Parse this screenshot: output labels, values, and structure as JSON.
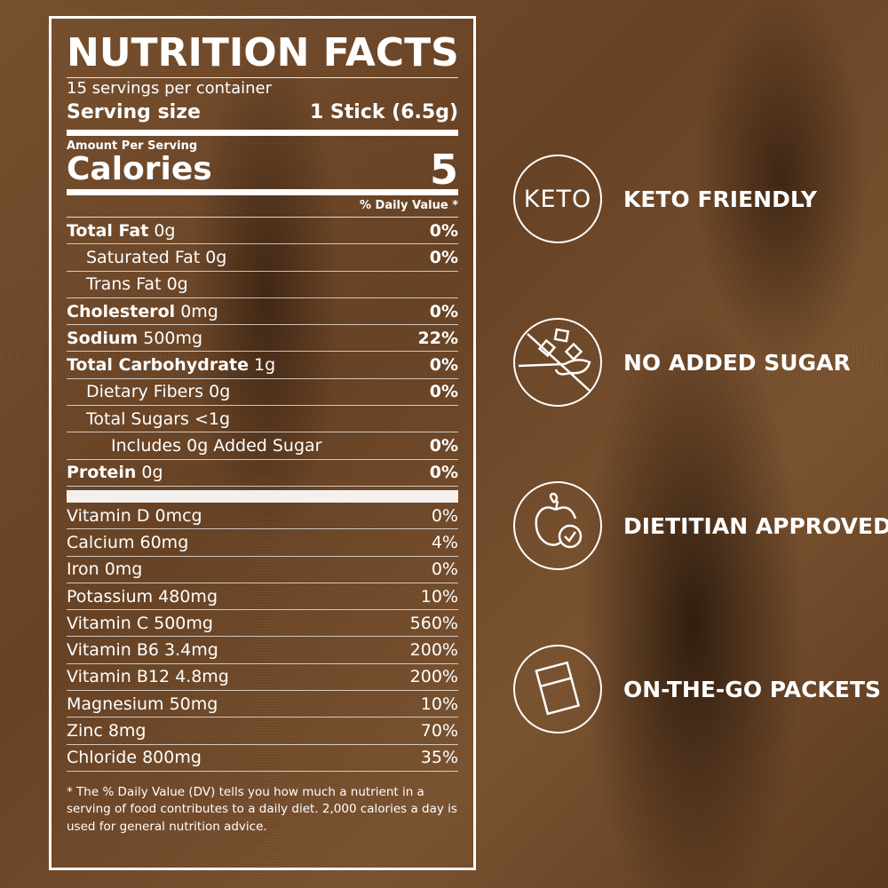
{
  "label": {
    "title": "NUTRITION FACTS",
    "servings": "15 servings per container",
    "serving_size_label": "Serving size",
    "serving_size_value": "1 Stick (6.5g)",
    "amount_per_serving": "Amount Per Serving",
    "calories_label": "Calories",
    "calories_value": "5",
    "dv_header": "% Daily Value *",
    "nutrients": [
      {
        "name": "Total Fat",
        "amount": "0g",
        "dv": "0%"
      },
      {
        "name": "Saturated Fat 0g",
        "amount": "",
        "dv": "0%"
      },
      {
        "name": "Trans Fat 0g",
        "amount": "",
        "dv": ""
      },
      {
        "name": "Cholesterol",
        "amount": "0mg",
        "dv": "0%"
      },
      {
        "name": "Sodium",
        "amount": "500mg",
        "dv": "22%"
      },
      {
        "name": "Total Carbohydrate",
        "amount": "1g",
        "dv": "0%"
      },
      {
        "name": "Dietary Fibers 0g",
        "amount": "",
        "dv": "0%"
      },
      {
        "name": "Total Sugars <1g",
        "amount": "",
        "dv": ""
      },
      {
        "name": "Includes 0g Added Sugar",
        "amount": "",
        "dv": "0%"
      },
      {
        "name": "Protein",
        "amount": "0g",
        "dv": "0%"
      }
    ],
    "vitamins": [
      {
        "name": "Vitamin D 0mcg",
        "dv": "0%"
      },
      {
        "name": "Calcium 60mg",
        "dv": "4%"
      },
      {
        "name": "Iron 0mg",
        "dv": "0%"
      },
      {
        "name": "Potassium 480mg",
        "dv": "10%"
      },
      {
        "name": "Vitamin C 500mg",
        "dv": "560%"
      },
      {
        "name": "Vitamin B6 3.4mg",
        "dv": "200%"
      },
      {
        "name": "Vitamin B12 4.8mg",
        "dv": "200%"
      },
      {
        "name": "Magnesium 50mg",
        "dv": "10%"
      },
      {
        "name": "Zinc 8mg",
        "dv": "70%"
      },
      {
        "name": "Chloride 800mg",
        "dv": "35%"
      }
    ],
    "footnote": "* The % Daily Value (DV) tells you how much a nutrient in a serving of food contributes to a daily diet. 2,000 calories a day is used for general nutrition advice."
  },
  "claims": [
    {
      "icon": "keto-icon",
      "icon_text": "KETO",
      "label": "KETO FRIENDLY"
    },
    {
      "icon": "no-sugar-icon",
      "label": "NO ADDED SUGAR"
    },
    {
      "icon": "apple-check-icon",
      "label": "DIETITIAN APPROVED"
    },
    {
      "icon": "packet-icon",
      "label": "ON-THE-GO PACKETS"
    }
  ],
  "colors": {
    "text": "#ffffff",
    "background": "#6a4426"
  }
}
